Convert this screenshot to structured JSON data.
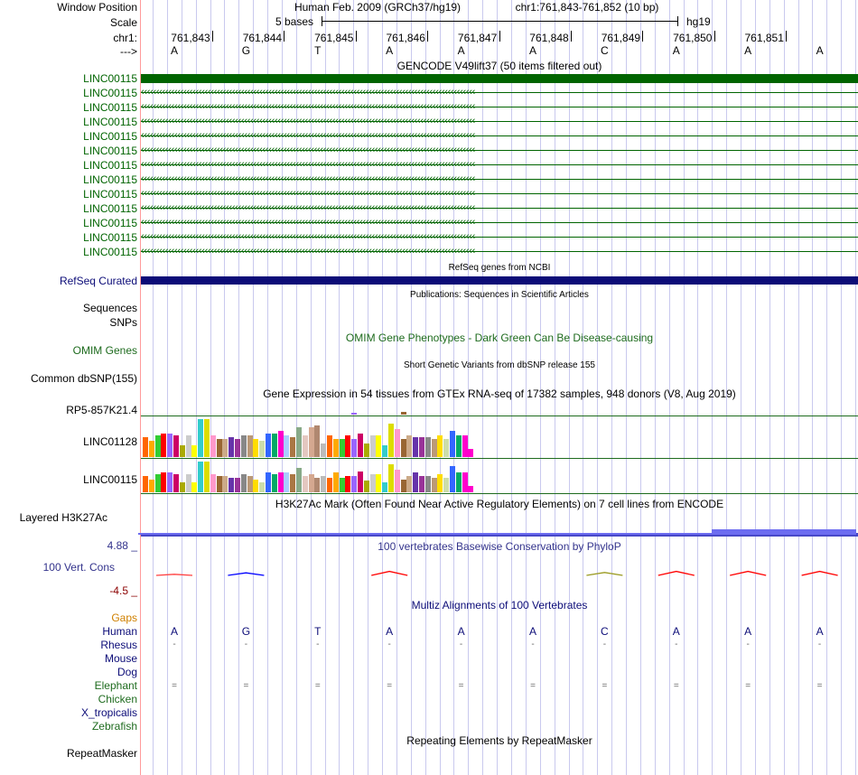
{
  "left_labels": {
    "window_position": "Window Position",
    "scale": "Scale",
    "chrom": "chr1:",
    "strand_arrow": "--->",
    "gencode_rows": [
      "LINC00115",
      "LINC00115",
      "LINC00115",
      "LINC00115",
      "LINC00115",
      "LINC00115",
      "LINC00115",
      "LINC00115",
      "LINC00115",
      "LINC00115",
      "LINC00115",
      "LINC00115",
      "LINC00115"
    ],
    "refseq": "RefSeq Curated",
    "sequences": "Sequences",
    "snps": "SNPs",
    "omim": "OMIM Genes",
    "dbsnp": "Common dbSNP(155)",
    "gtex_genes": [
      "RP5-857K21.4",
      "LINC01128",
      "LINC00115"
    ],
    "h3k27ac": "Layered H3K27Ac",
    "cons_max": "4.88 _",
    "cons_label": "100 Vert. Cons",
    "cons_min": "-4.5 _",
    "gaps": "Gaps",
    "species": [
      "Human",
      "Rhesus",
      "Mouse",
      "Dog",
      "Elephant",
      "Chicken",
      "X_tropicalis",
      "Zebrafish"
    ],
    "repeatmasker": "RepeatMasker"
  },
  "header": {
    "assembly": "Human Feb. 2009 (GRCh37/hg19)",
    "position": "chr1:761,843-761,852 (10 bp)",
    "scale_label": "5 bases",
    "db": "hg19"
  },
  "ruler": {
    "positions": [
      "761,843",
      "761,844",
      "761,845",
      "761,846",
      "761,847",
      "761,848",
      "761,849",
      "761,850",
      "761,851"
    ]
  },
  "bases": [
    "A",
    "G",
    "T",
    "A",
    "A",
    "A",
    "C",
    "A",
    "A",
    "A"
  ],
  "tracks": {
    "gencode_title": "GENCODE V49lift37 (50 items filtered out)",
    "refseq_title": "RefSeq genes from NCBI",
    "publications_title": "Publications: Sequences in Scientific Articles",
    "omim_title": "OMIM Gene Phenotypes - Dark Green Can Be Disease-causing",
    "dbsnp_title": "Short Genetic Variants from dbSNP release 155",
    "gtex_title": "Gene Expression in 54 tissues from GTEx RNA-seq of 17382 samples, 948 donors (V8, Aug 2019)",
    "h3k27ac_title": "H3K27Ac Mark (Often Found Near Active Regulatory Elements) on 7 cell lines from ENCODE",
    "phylop_title": "100 vertebrates Basewise Conservation by PhyloP",
    "multiz_title": "Multiz Alignments of 100 Vertebrates",
    "repeatmasker_title": "Repeating Elements by RepeatMasker"
  },
  "multiz": {
    "rhesus": [
      "-",
      "-",
      "-",
      "-",
      "-",
      "-",
      "-",
      "-",
      "-",
      "-"
    ],
    "elephant": [
      "=",
      "=",
      "=",
      "=",
      "=",
      "=",
      "=",
      "=",
      "=",
      "="
    ]
  },
  "colors": {
    "gencode": "#006400",
    "refseq": "#0c0c78",
    "omim": "#1e6b1e",
    "species_label": "#0c0c78",
    "gaps": "#d08000",
    "cons_neg": "#8b0000",
    "cons_pos": "#33338c",
    "h3k27ac": "#6c6cf0"
  },
  "gtex_colors": [
    "#ff6600",
    "#ffaa00",
    "#33cc33",
    "#ff0000",
    "#9966ff",
    "#cc0066",
    "#aaaa00",
    "#cccccc",
    "#ffff00",
    "#33cccc",
    "#dddd00",
    "#ff99cc",
    "#996633",
    "#ccaa88",
    "#6633aa",
    "#993399",
    "#888888",
    "#bb9977",
    "#ffdd00",
    "#ccddaa",
    "#3366ff",
    "#00aa66",
    "#ff00cc",
    "#aaccff",
    "#aa7744",
    "#88aa88",
    "#e4c8c0",
    "#d4a890",
    "#b08870",
    "#bbbbbb"
  ],
  "gtex_values": {
    "RP5-857K21.4": [
      0,
      0,
      0,
      0,
      0,
      0,
      0,
      0,
      0,
      0,
      0,
      0,
      0,
      0,
      0,
      0,
      0,
      0,
      0,
      0,
      0,
      0,
      0,
      0,
      0,
      0,
      0,
      0,
      0,
      0,
      0,
      0,
      0,
      0,
      0.2,
      0,
      0,
      0,
      0,
      0,
      0,
      0,
      0.3,
      0,
      0,
      0,
      0,
      0,
      0,
      0,
      0,
      0,
      0,
      0
    ],
    "LINC01128": [
      0.5,
      0.4,
      0.55,
      0.6,
      0.6,
      0.55,
      0.3,
      0.55,
      0.3,
      0.95,
      0.95,
      0.55,
      0.45,
      0.45,
      0.5,
      0.45,
      0.55,
      0.55,
      0.45,
      0.4,
      0.6,
      0.6,
      0.65,
      0.55,
      0.5,
      0.75,
      0.55,
      0.75,
      0.8,
      0.35,
      0.55,
      0.45,
      0.45,
      0.55,
      0.45,
      0.6,
      0.35,
      0.55,
      0.55,
      0.3,
      0.85,
      0.7,
      0.45,
      0.55,
      0.5,
      0.5,
      0.5,
      0.45,
      0.55,
      0.45,
      0.65,
      0.55,
      0.55,
      0.2
    ],
    "LINC00115": [
      0.5,
      0.4,
      0.55,
      0.6,
      0.6,
      0.55,
      0.3,
      0.55,
      0.3,
      0.95,
      0.95,
      0.55,
      0.5,
      0.5,
      0.45,
      0.45,
      0.55,
      0.5,
      0.4,
      0.3,
      0.6,
      0.55,
      0.6,
      0.6,
      0.55,
      0.75,
      0.5,
      0.55,
      0.45,
      0.5,
      0.45,
      0.6,
      0.45,
      0.5,
      0.5,
      0.65,
      0.35,
      0.55,
      0.55,
      0.3,
      0.85,
      0.7,
      0.4,
      0.5,
      0.6,
      0.5,
      0.5,
      0.45,
      0.55,
      0.45,
      0.8,
      0.6,
      0.6,
      0.2
    ]
  },
  "phylop_values": [
    -0.3,
    -0.7,
    0,
    1.1,
    0,
    0,
    0.8,
    1.1,
    1.1,
    1.1
  ],
  "h3k27ac_values": [
    0.4,
    0.4,
    0.4,
    0.4,
    0.4,
    0.4,
    0.4,
    0.4,
    1,
    1
  ]
}
